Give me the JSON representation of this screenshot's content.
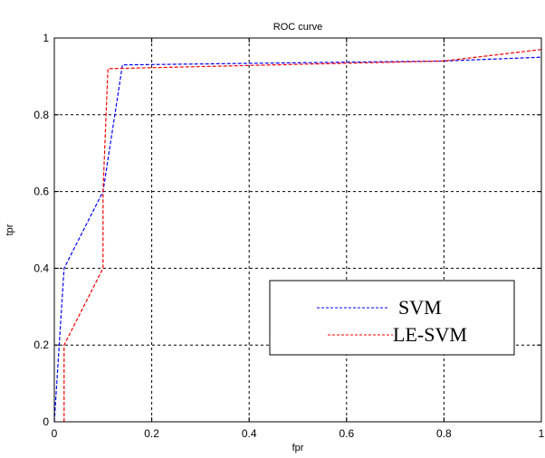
{
  "chart_data": {
    "type": "line",
    "title": "ROC curve",
    "xlabel": "fpr",
    "ylabel": "tpr",
    "xlim": [
      0,
      1
    ],
    "ylim": [
      0,
      1
    ],
    "xticks": [
      0,
      0.2,
      0.4,
      0.6,
      0.8,
      1
    ],
    "xtick_labels": [
      "0",
      "0.2",
      "0.4",
      "0.6",
      "0.8",
      "1"
    ],
    "yticks": [
      0,
      0.2,
      0.4,
      0.6,
      0.8,
      1
    ],
    "ytick_labels": [
      "0",
      "0.2",
      "0.4",
      "0.6",
      "0.8",
      "1"
    ],
    "grid": true,
    "legend_position": "lower-right",
    "series": [
      {
        "name": "SVM",
        "color": "#0000ff",
        "style": "dashed",
        "x": [
          0,
          0.02,
          0.1,
          0.14,
          0.8,
          1.0
        ],
        "y": [
          0,
          0.4,
          0.6,
          0.93,
          0.94,
          0.95
        ]
      },
      {
        "name": "LE-SVM",
        "color": "#ff0000",
        "style": "dashed",
        "x": [
          0.02,
          0.02,
          0.1,
          0.1,
          0.11,
          0.8,
          1.0
        ],
        "y": [
          0,
          0.2,
          0.4,
          0.6,
          0.92,
          0.94,
          0.97
        ]
      }
    ]
  }
}
